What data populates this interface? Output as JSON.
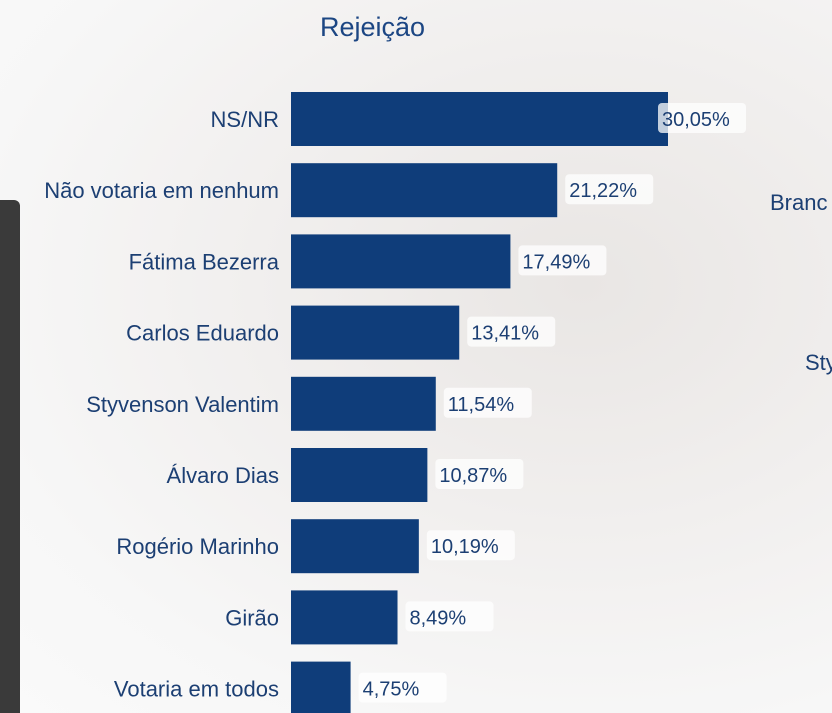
{
  "chart_data": {
    "type": "bar",
    "orientation": "horizontal",
    "title": "Rejeição",
    "categories": [
      "NS/NR",
      "Não votaria em nenhum",
      "Fátima Bezerra",
      "Carlos Eduardo",
      "Styvenson Valentim",
      "Álvaro Dias",
      "Rogério Marinho",
      "Girão",
      "Votaria em todos"
    ],
    "values": [
      30.05,
      21.22,
      17.49,
      13.41,
      11.54,
      10.87,
      10.19,
      8.49,
      4.75
    ],
    "value_labels": [
      "30,05%",
      "21,22%",
      "17,49%",
      "13,41%",
      "11,54%",
      "10,87%",
      "10,19%",
      "8,49%",
      "4,75%"
    ],
    "bar_color": "#0f3d7a",
    "grid": false
  },
  "partial_labels": [
    "Branc",
    "Sty"
  ]
}
